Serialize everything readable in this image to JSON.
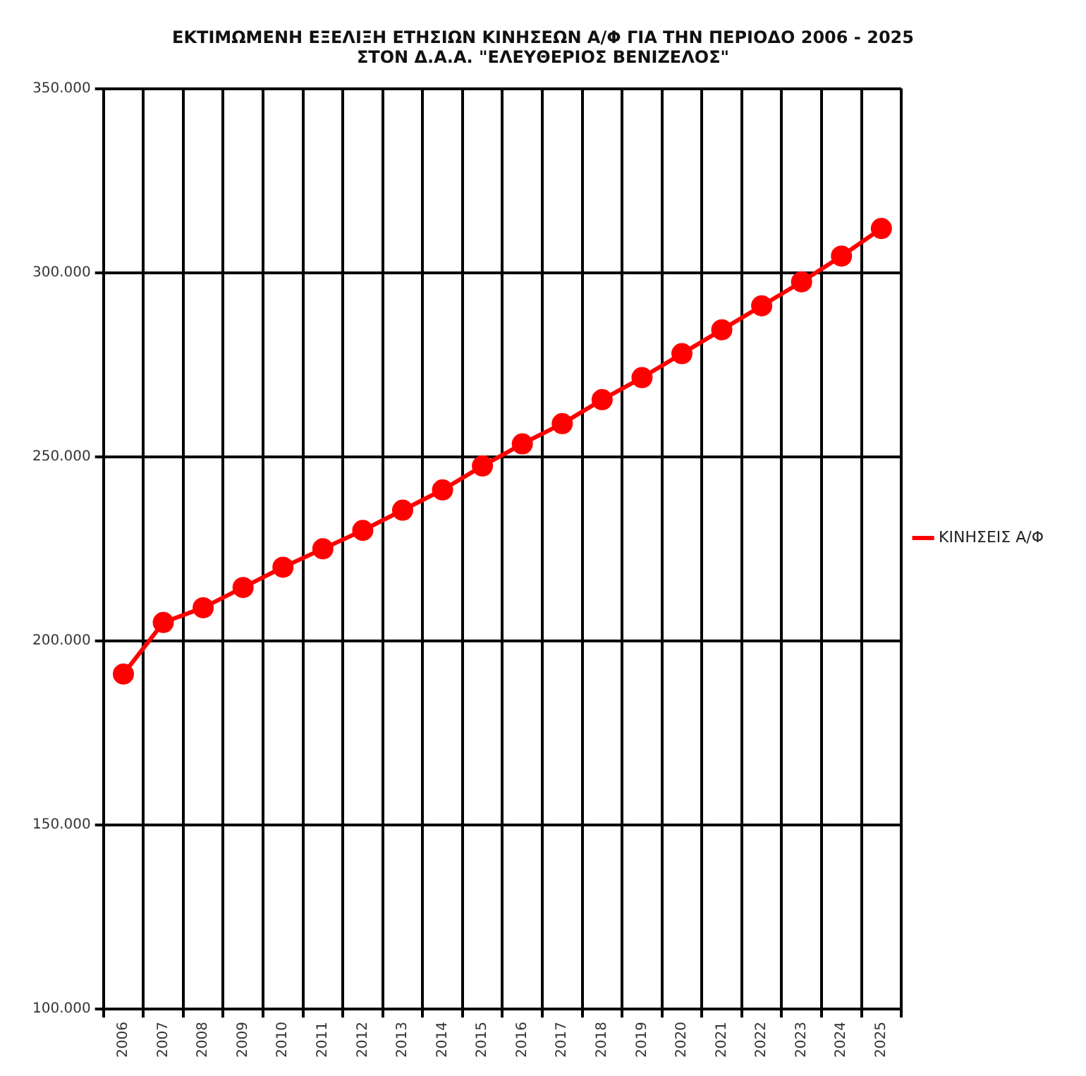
{
  "chart_data": {
    "type": "line",
    "title": [
      "ΕΚΤΙΜΩΜΕΝΗ ΕΞΕΛΙΞΗ ΕΤΗΣΙΩΝ ΚΙΝΗΣΕΩΝ Α/Φ ΓΙΑ ΤΗΝ ΠΕΡΙΟΔΟ 2006 - 2025",
      "ΣΤΟΝ Δ.Α.Α. \"ΕΛΕΥΘΕΡΙΟΣ ΒΕΝΙΖΕΛΟΣ\""
    ],
    "categories": [
      "2006",
      "2007",
      "2008",
      "2009",
      "2010",
      "2011",
      "2012",
      "2013",
      "2014",
      "2015",
      "2016",
      "2017",
      "2018",
      "2019",
      "2020",
      "2021",
      "2022",
      "2023",
      "2024",
      "2025"
    ],
    "series": [
      {
        "name": "ΚΙΝΗΣΕΙΣ Α/Φ",
        "color": "#ff0000",
        "values": [
          191000,
          205000,
          209000,
          214500,
          220000,
          225000,
          230000,
          235500,
          241000,
          247500,
          253500,
          259000,
          265500,
          271500,
          278000,
          284500,
          291000,
          297500,
          304500,
          312000
        ]
      }
    ],
    "ylim": [
      100000,
      350000
    ],
    "yticks": [
      {
        "value": 100000,
        "label": "100.000"
      },
      {
        "value": 150000,
        "label": "150.000"
      },
      {
        "value": 200000,
        "label": "200.000"
      },
      {
        "value": 250000,
        "label": "250.000"
      },
      {
        "value": 300000,
        "label": "300.000"
      },
      {
        "value": 350000,
        "label": "350.000"
      }
    ],
    "grid": true,
    "legend": "right",
    "marker": "circle",
    "line_style": "solid"
  }
}
